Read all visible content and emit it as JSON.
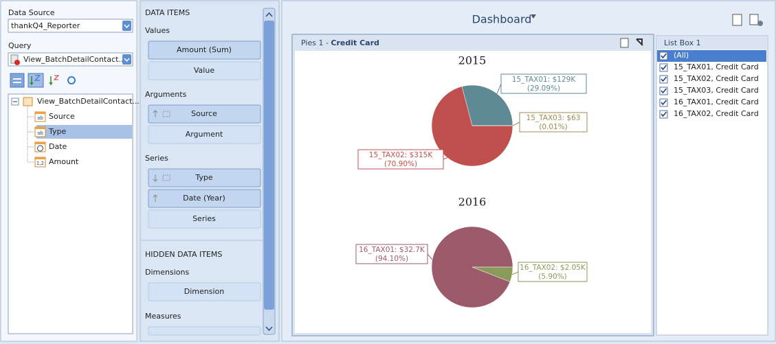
{
  "left_panel": {
    "data_source_label": "Data Source",
    "data_source": "thankQ4_Reporter",
    "query_label": "Query",
    "query": "View_BatchDetailContact...",
    "tree": {
      "root": "View_BatchDetailContact...",
      "fields": [
        "Source",
        "Type",
        "Date",
        "Amount"
      ],
      "field_icons": [
        "ab",
        "ab",
        null,
        "1,2"
      ]
    }
  },
  "data_items": {
    "title": "DATA ITEMS",
    "sections": [
      {
        "label": "Values",
        "items": [
          "Amount (Sum)",
          "Value"
        ]
      },
      {
        "label": "Arguments",
        "items": [
          "Source",
          "Argument"
        ]
      },
      {
        "label": "Series",
        "items": [
          "Type",
          "Date (Year)",
          "Series"
        ]
      }
    ],
    "hidden_title": "HIDDEN DATA ITEMS",
    "hidden_sections": [
      {
        "label": "Dimensions",
        "items": [
          "Dimension"
        ]
      },
      {
        "label": "Measures"
      }
    ]
  },
  "dashboard": {
    "title": "Dashboard",
    "pie_panel": {
      "title_prefix": "Pies 1 - ",
      "title": "Credit Card"
    },
    "list_box": {
      "title": "List Box 1",
      "items": [
        "(All)",
        "15_TAX01, Credit Card",
        "15_TAX02, Credit Card",
        "15_TAX03, Credit Card",
        "16_TAX01, Credit Card",
        "16_TAX02, Credit Card"
      ]
    }
  },
  "chart_data": [
    {
      "type": "pie",
      "title": "2015",
      "categories": [
        "15_TAX01: $129K",
        "15_TAX02: $315K",
        "15_TAX03: $63"
      ],
      "values": [
        29.09,
        70.9,
        0.01
      ],
      "value_labels": [
        "(29.09%)",
        "(70.90%)",
        "(0.01%)"
      ],
      "colors": [
        "#5f8a94",
        "#c0504d",
        "#9c8a4f"
      ]
    },
    {
      "type": "pie",
      "title": "2016",
      "categories": [
        "16_TAX01: $32.7K",
        "16_TAX02: $2.05K"
      ],
      "values": [
        94.1,
        5.9
      ],
      "value_labels": [
        "(94.10%)",
        "(5.90%)"
      ],
      "colors": [
        "#9b5b6b",
        "#8a9a5b"
      ]
    }
  ]
}
